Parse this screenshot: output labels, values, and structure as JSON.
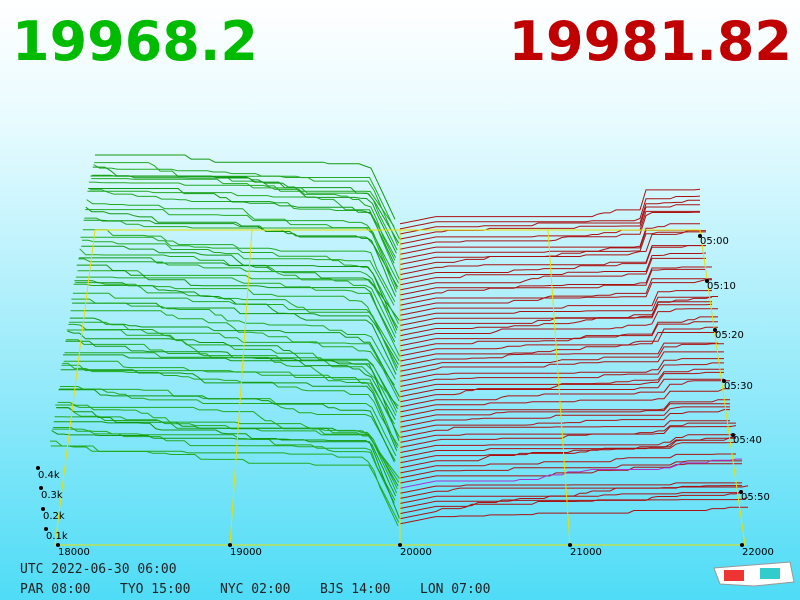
{
  "header": {
    "bid": "19968.2",
    "ask": "19981.82"
  },
  "axes": {
    "price_labels": [
      "18000",
      "19000",
      "20000",
      "21000",
      "22000"
    ],
    "volume_labels": [
      "0.4k",
      "0.3k",
      "0.2k",
      "0.1k"
    ],
    "time_labels": [
      "05:00",
      "05:10",
      "05:20",
      "05:30",
      "05:40",
      "05:50"
    ]
  },
  "footer": {
    "utc": "UTC 2022-06-30 06:00",
    "cities": [
      "PAR 08:00",
      "TYO 15:00",
      "NYC 02:00",
      "BJS 14:00",
      "LON 07:00"
    ]
  }
}
